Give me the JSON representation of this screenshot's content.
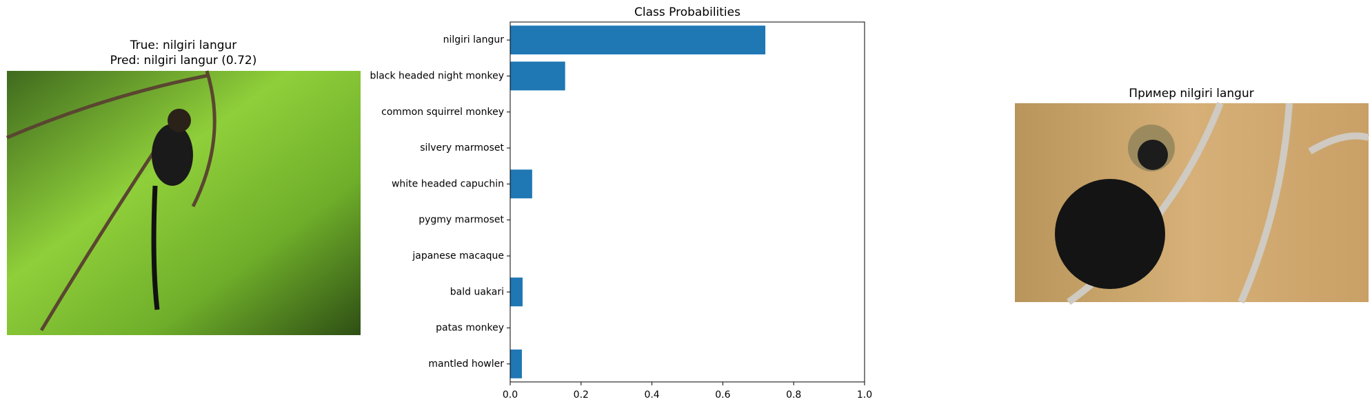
{
  "left_panel": {
    "title_lines": [
      "True: nilgiri langur",
      "Pred: nilgiri langur (0.72)"
    ]
  },
  "chart_data": {
    "type": "barh",
    "title": "Class Probabilities",
    "categories": [
      "nilgiri langur",
      "black headed night monkey",
      "common squirrel monkey",
      "silvery marmoset",
      "white headed capuchin",
      "pygmy marmoset",
      "japanese macaque",
      "bald uakari",
      "patas monkey",
      "mantled howler"
    ],
    "values": [
      0.72,
      0.155,
      0,
      0,
      0.062,
      0,
      0,
      0.035,
      0,
      0.033
    ],
    "color": "#1f77b4",
    "xlim": [
      0,
      1
    ],
    "xticks": [
      {
        "value": 0,
        "label": "0.0"
      },
      0.2,
      0.4,
      0.6,
      0.8,
      {
        "value": 1,
        "label": "1.0"
      }
    ]
  },
  "right_panel": {
    "title": "Пример nilgiri langur"
  }
}
